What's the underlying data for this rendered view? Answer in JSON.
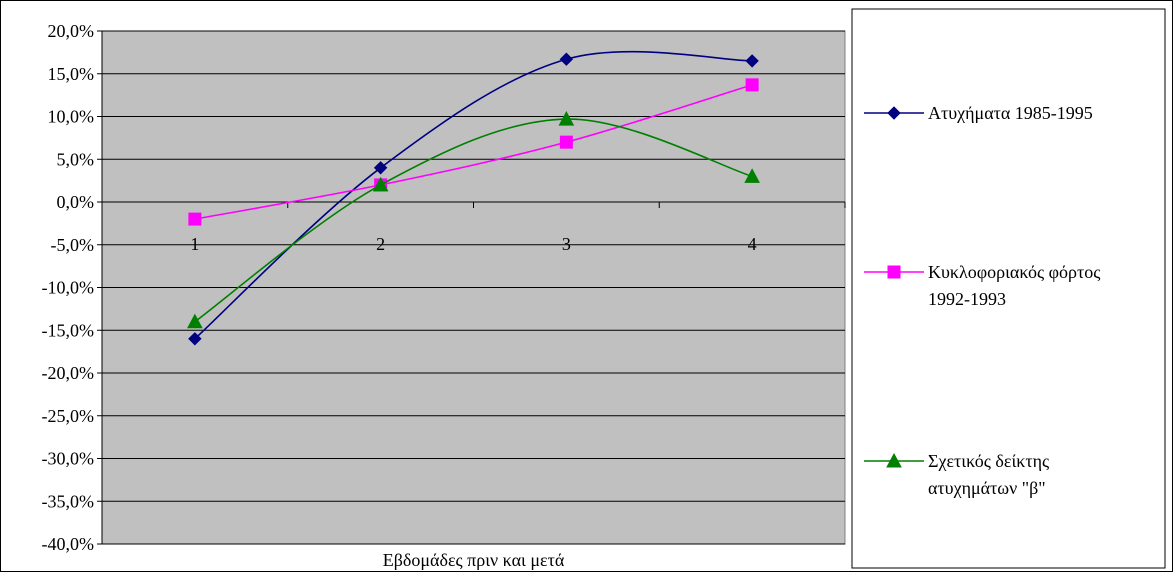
{
  "chart_data": {
    "type": "line",
    "title": "",
    "xlabel": "Εβδομάδες πριν και μετά",
    "ylabel": "",
    "categories": [
      "1",
      "2",
      "3",
      "4"
    ],
    "ylim": [
      -40,
      20
    ],
    "yticks": [
      20,
      15,
      10,
      5,
      0,
      -5,
      -10,
      -15,
      -20,
      -25,
      -30,
      -35,
      -40
    ],
    "ytick_labels": [
      "20,0%",
      "15,0%",
      "10,0%",
      "5,0%",
      "0,0%",
      "-5,0%",
      "-10,0%",
      "-15,0%",
      "-20,0%",
      "-25,0%",
      "-30,0%",
      "-35,0%",
      "-40,0%"
    ],
    "grid": true,
    "plot_background": "#c0c0c0",
    "smooth": true,
    "legend_position": "right",
    "series": [
      {
        "name": "Ατυχήματα 1985-1995",
        "legend_lines": [
          "Ατυχήματα 1985-1995"
        ],
        "values": [
          -16.0,
          4.0,
          16.7,
          16.5
        ],
        "color": "#000080",
        "marker": "diamond"
      },
      {
        "name": "Κυκλοφοριακός φόρτος 1992-1993",
        "legend_lines": [
          "Κυκλοφοριακός φόρτος",
          "1992-1993"
        ],
        "values": [
          -2.0,
          2.0,
          7.0,
          13.7
        ],
        "color": "#ff00ff",
        "marker": "square"
      },
      {
        "name": "Σχετικός δείκτης ατυχημάτων \"β\"",
        "legend_lines": [
          "Σχετικός δείκτης",
          "ατυχημάτων \"β\""
        ],
        "values": [
          -14.0,
          2.0,
          9.7,
          3.0
        ],
        "color": "#008000",
        "marker": "triangle"
      }
    ]
  }
}
